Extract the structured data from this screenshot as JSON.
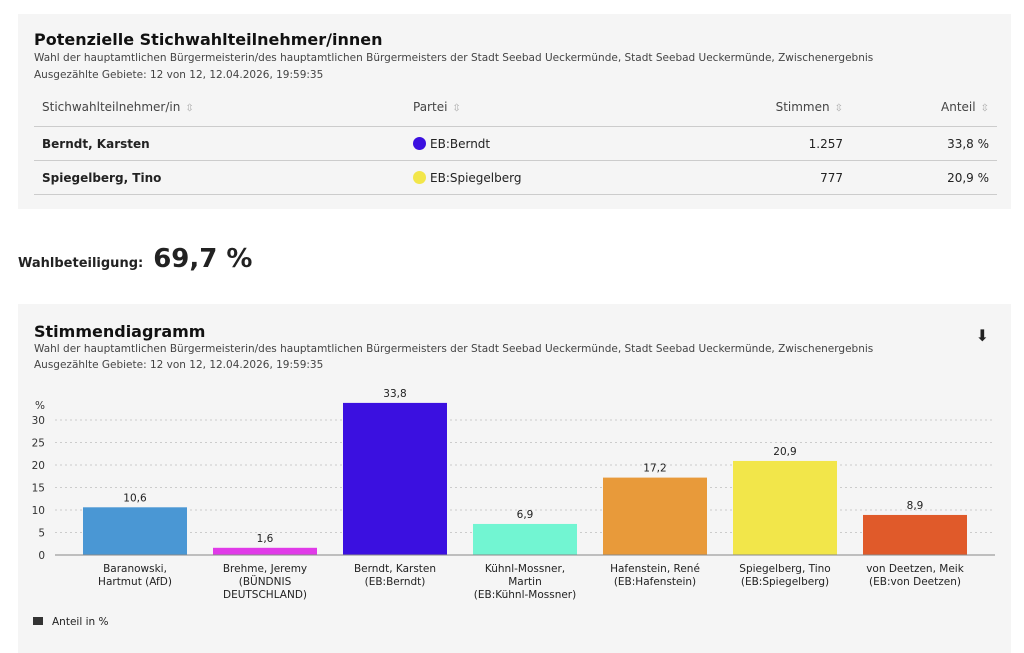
{
  "runoff": {
    "title": "Potenzielle Stichwahlteilnehmer/innen",
    "subtitle": "Wahl der hauptamtlichen Bürgermeisterin/des hauptamtlichen Bürgermeisters der Stadt Seebad Ueckermünde, Stadt Seebad Ueckermünde, Zwischenergebnis",
    "status": "Ausgezählte Gebiete: 12 von 12, 12.04.2026, 19:59:35",
    "columns": [
      "Stichwahlteilnehmer/in",
      "Partei",
      "Stimmen",
      "Anteil"
    ],
    "rows": [
      {
        "name": "Berndt, Karsten",
        "party": "EB:Berndt",
        "color": "#3b10e0",
        "votes": "1.257",
        "share": "33,8 %"
      },
      {
        "name": "Spiegelberg, Tino",
        "party": "EB:Spiegelberg",
        "color": "#f2e64a",
        "votes": "777",
        "share": "20,9 %"
      }
    ]
  },
  "turnout": {
    "label": "Wahlbeteiligung:",
    "value": "69,7 %"
  },
  "diagram": {
    "title": "Stimmendiagramm",
    "subtitle": "Wahl der hauptamtlichen Bürgermeisterin/des hauptamtlichen Bürgermeisters der Stadt Seebad Ueckermünde, Stadt Seebad Ueckermünde, Zwischenergebnis",
    "status": "Ausgezählte Gebiete: 12 von 12, 12.04.2026, 19:59:35",
    "download_icon": "download-icon"
  },
  "chart_data": {
    "type": "bar",
    "ylabel": "%",
    "ylim": [
      0,
      35
    ],
    "yticks": [
      0,
      5,
      10,
      15,
      20,
      25,
      30
    ],
    "grid": true,
    "legend": "Anteil in %",
    "legend_position": "bottom-left",
    "categories": [
      [
        "Baranowski,",
        "Hartmut (AfD)"
      ],
      [
        "Brehme, Jeremy",
        "(BÜNDNIS",
        "DEUTSCHLAND)"
      ],
      [
        "Berndt, Karsten",
        "(EB:Berndt)"
      ],
      [
        "Kühnl-Mossner,",
        "Martin",
        "(EB:Kühnl-Mossner)"
      ],
      [
        "Hafenstein, René",
        "(EB:Hafenstein)"
      ],
      [
        "Spiegelberg, Tino",
        "(EB:Spiegelberg)"
      ],
      [
        "von Deetzen, Meik",
        "(EB:von Deetzen)"
      ]
    ],
    "values": [
      10.6,
      1.6,
      33.8,
      6.9,
      17.2,
      20.9,
      8.9
    ],
    "labels": [
      "10,6",
      "1,6",
      "33,8",
      "6,9",
      "17,2",
      "20,9",
      "8,9"
    ],
    "colors": [
      "#4a97d4",
      "#e03ae8",
      "#3b10e0",
      "#72f5d2",
      "#e89a3a",
      "#f2e64a",
      "#e05a2a"
    ]
  }
}
